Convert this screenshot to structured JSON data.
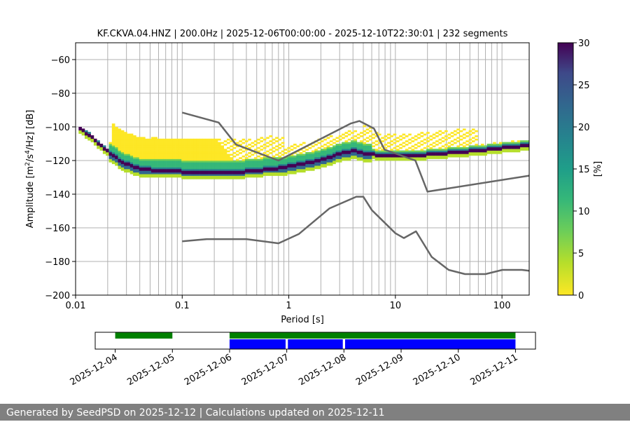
{
  "chart_data": [
    {
      "type": "heatmap",
      "title": "KF.CKVA.04.HNZ | 200.0Hz | 2025-12-06T00:00:00 - 2025-12-10T22:30:01 | 232 segments",
      "xlabel": "Period [s]",
      "ylabel_prefix": "Amplitude [m",
      "ylabel_sup1": "2",
      "ylabel_mid": "/s",
      "ylabel_sup2": "4",
      "ylabel_suffix": "/Hz] [dB]",
      "x_scale": "log",
      "xlim": [
        0.01,
        180
      ],
      "ylim": [
        -200,
        -50
      ],
      "x_ticks": [
        0.01,
        0.1,
        1,
        10,
        100
      ],
      "x_tick_labels": [
        "0.01",
        "0.1",
        "1",
        "10",
        "100"
      ],
      "y_ticks": [
        -200,
        -180,
        -160,
        -140,
        -120,
        -100,
        -80,
        -60
      ],
      "y_tick_labels": [
        "−200",
        "−180",
        "−160",
        "−140",
        "−120",
        "−100",
        "−80",
        "−60"
      ],
      "grid": true,
      "noise_model_high": {
        "period": [
          0.1,
          0.22,
          0.32,
          0.8,
          3.8,
          4.6,
          6.3,
          7.9,
          15.4,
          20,
          180
        ],
        "db": [
          -91.5,
          -97.4,
          -110.5,
          -120,
          -98,
          -96.5,
          -101,
          -113.5,
          -120,
          -138.5,
          -129
        ]
      },
      "noise_model_low": {
        "period": [
          0.1,
          0.17,
          0.4,
          0.8,
          1.24,
          2.4,
          4.3,
          5.0,
          6.0,
          10,
          12,
          15.6,
          21.9,
          31.6,
          45,
          70,
          101,
          154,
          180
        ],
        "db": [
          -168,
          -166.7,
          -166.7,
          -169.2,
          -163.7,
          -148.5,
          -141.5,
          -141.5,
          -149.4,
          -163.2,
          -166.1,
          -162.1,
          -177.3,
          -185,
          -187.5,
          -187.5,
          -185,
          -185,
          -185.5
        ]
      },
      "psd_mode": {
        "period": [
          0.0106,
          0.0133,
          0.0168,
          0.02,
          0.025,
          0.03,
          0.04,
          0.06,
          0.1,
          0.2,
          0.4,
          0.8,
          1.2,
          2,
          3,
          4,
          5,
          7,
          10,
          15,
          20,
          30,
          50,
          100,
          180
        ],
        "db": [
          -101,
          -105,
          -111,
          -115,
          -119.5,
          -122.5,
          -125,
          -126.5,
          -127,
          -127.5,
          -127,
          -125,
          -123,
          -120,
          -116.5,
          -114.5,
          -116,
          -117.5,
          -118,
          -117.5,
          -117,
          -116,
          -115,
          -113,
          -111.5
        ]
      },
      "colorbar": {
        "label": "[%]",
        "min": 0,
        "max": 30,
        "ticks": [
          0,
          5,
          10,
          15,
          20,
          25,
          30
        ],
        "tick_labels": [
          "0",
          "5",
          "10",
          "15",
          "20",
          "25",
          "30"
        ],
        "colormap": "viridis_r"
      }
    },
    {
      "type": "timeline",
      "x_tick_labels": [
        "2025-12-04",
        "2025-12-05",
        "2025-12-06",
        "2025-12-07",
        "2025-12-08",
        "2025-12-09",
        "2025-12-10",
        "2025-12-11"
      ],
      "xlim_days": [
        -0.35,
        7.35
      ],
      "available_segments": [
        [
          0.0,
          1.0
        ],
        [
          2.0,
          7.0
        ]
      ],
      "psd_segments": [
        [
          2.0,
          2.98
        ],
        [
          3.02,
          3.98
        ],
        [
          4.02,
          7.0
        ]
      ],
      "available_color": "#008000",
      "psd_color": "#0000ff"
    }
  ],
  "footer_text": "Generated by SeedPSD on 2025-12-12 | Calculations updated on 2025-12-11",
  "colors": {
    "noise_model": "#666666",
    "footer_bg": "#808080",
    "grid": "#b0b0b0"
  }
}
